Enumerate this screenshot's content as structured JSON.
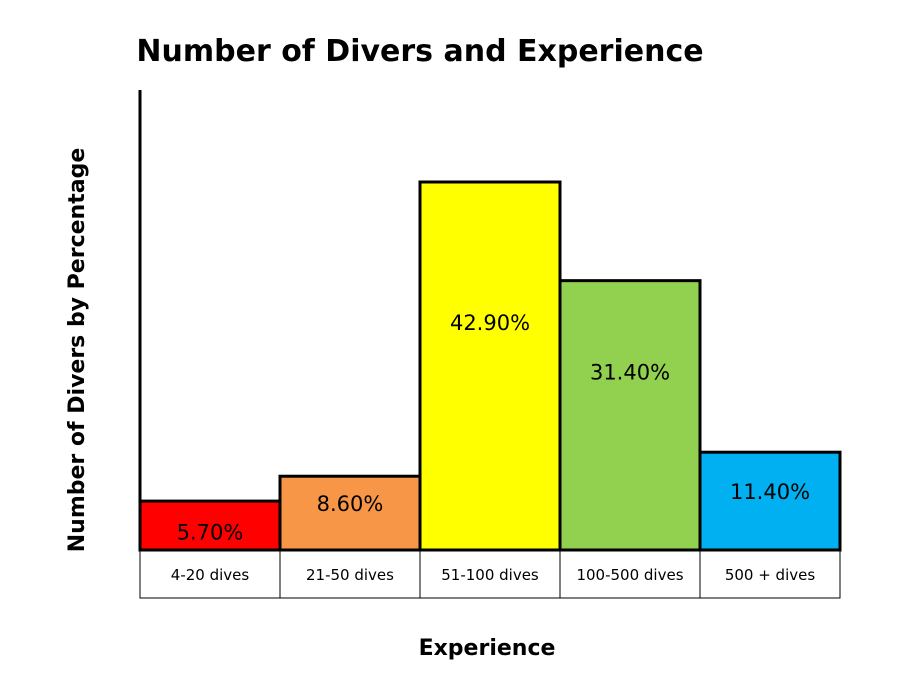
{
  "chart_data": {
    "type": "bar",
    "title": "Number of Divers and Experience",
    "xlabel": "Experience",
    "ylabel": "Number of Divers by Percentage",
    "categories": [
      "4-20 dives",
      "21-50 dives",
      "51-100 dives",
      "100-500 dives",
      "500 + dives"
    ],
    "values": [
      5.7,
      8.6,
      42.9,
      31.4,
      11.4
    ],
    "data_labels": [
      "5.70%",
      "8.60%",
      "42.90%",
      "31.40%",
      "11.40%"
    ],
    "bar_colors": [
      "#ff0000",
      "#f79646",
      "#ffff00",
      "#92d050",
      "#00b0f0"
    ],
    "ylim": [
      0,
      45
    ],
    "grid": false,
    "legend": "none"
  }
}
